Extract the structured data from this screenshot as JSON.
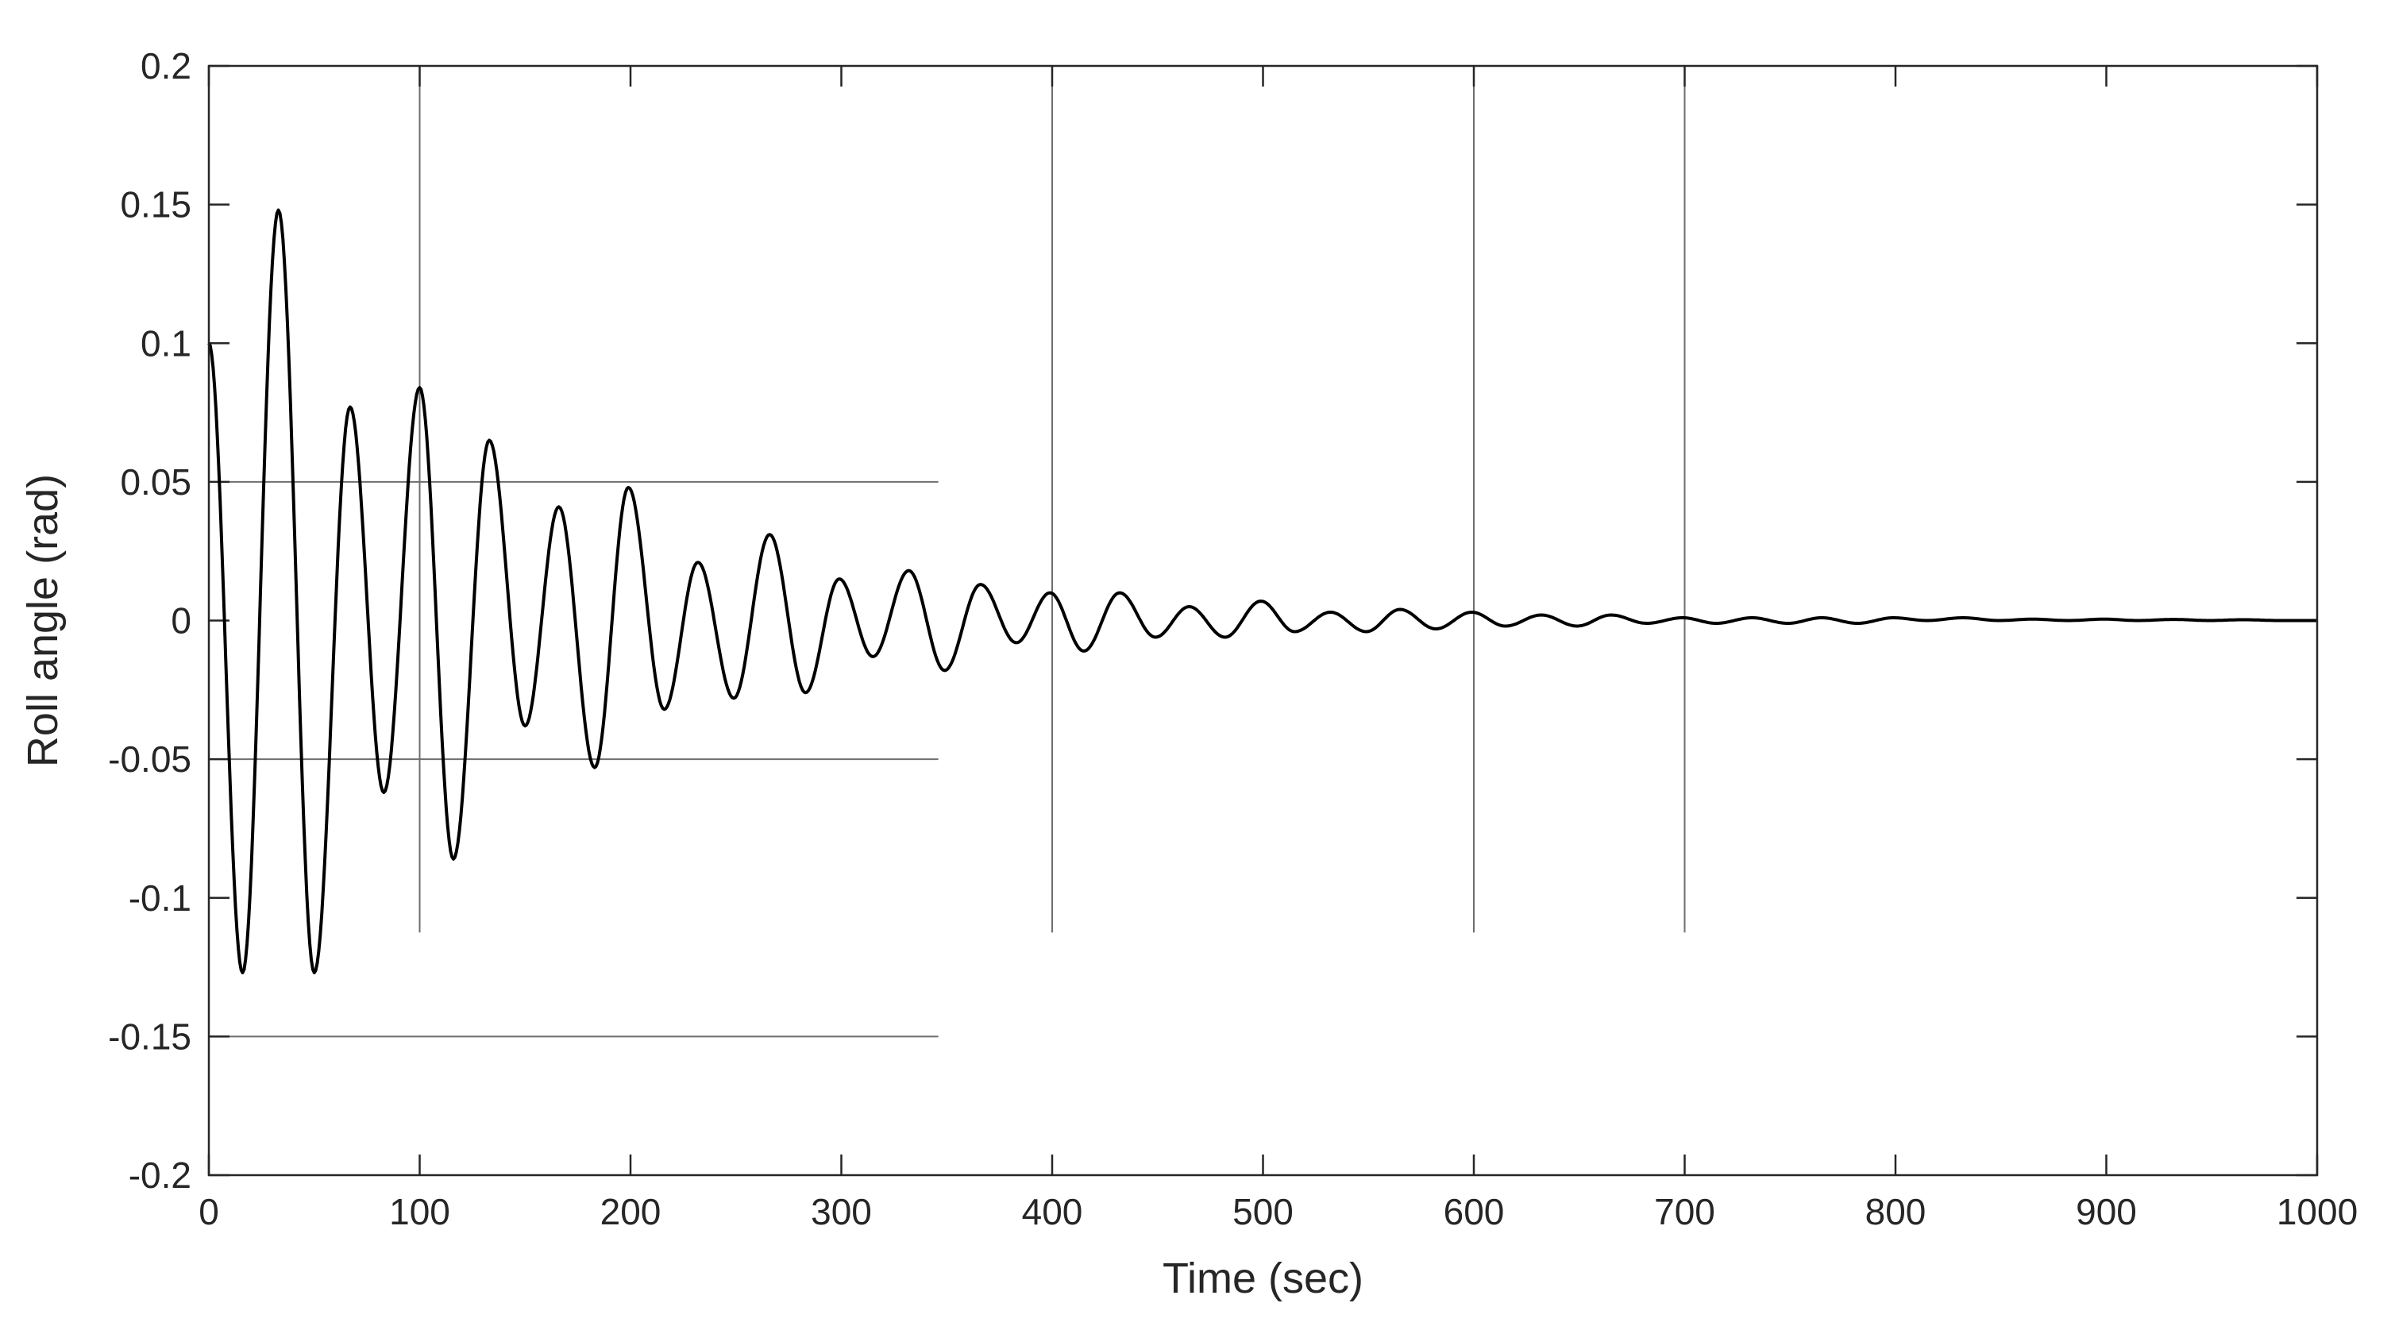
{
  "chart_data": {
    "type": "line",
    "title": "",
    "xlabel": "Time (sec)",
    "ylabel": "Roll angle (rad)",
    "xlim": [
      0,
      1000
    ],
    "ylim": [
      -0.2,
      0.2
    ],
    "xticks": [
      0,
      100,
      200,
      300,
      400,
      500,
      600,
      700,
      800,
      900,
      1000
    ],
    "yticks": [
      0.2,
      0.15,
      0.1,
      0.05,
      0,
      -0.05,
      -0.1,
      -0.15,
      -0.2
    ],
    "xtick_labels": [
      "0",
      "100",
      "200",
      "300",
      "400",
      "500",
      "600",
      "700",
      "800",
      "900",
      "1000"
    ],
    "ytick_labels": [
      "0.2",
      "0.15",
      "0.1",
      "0.05",
      "0",
      "-0.05",
      "-0.1",
      "-0.15",
      "-0.2"
    ],
    "grid": false,
    "legend": "none",
    "line_color": "#000000",
    "series": [
      {
        "x": [
          0,
          16,
          33,
          50,
          67,
          83,
          100,
          116,
          133,
          150,
          166,
          183,
          199,
          216,
          232,
          249,
          266,
          283,
          299,
          315,
          332,
          349,
          366,
          383,
          399,
          415,
          432,
          449,
          465,
          482,
          499,
          515,
          532,
          549,
          565,
          582,
          599,
          615,
          632,
          649,
          665,
          682,
          699,
          715,
          732,
          749,
          765,
          782,
          799,
          815,
          832,
          849,
          865,
          882,
          899,
          915,
          932,
          949,
          965,
          982,
          1000
        ],
        "y": [
          0.1,
          -0.127,
          0.148,
          -0.127,
          0.077,
          -0.062,
          0.084,
          -0.086,
          0.065,
          -0.038,
          0.041,
          -0.053,
          0.048,
          -0.032,
          0.021,
          -0.028,
          0.031,
          -0.026,
          0.015,
          -0.013,
          0.018,
          -0.018,
          0.013,
          -0.008,
          0.01,
          -0.011,
          0.01,
          -0.006,
          0.005,
          -0.006,
          0.007,
          -0.004,
          0.003,
          -0.004,
          0.004,
          -0.003,
          0.003,
          -0.002,
          0.002,
          -0.002,
          0.002,
          -0.001,
          0.001,
          -0.001,
          0.001,
          -0.001,
          0.001,
          -0.001,
          0.001,
          0,
          0.001,
          0,
          0.0005,
          0,
          0.0005,
          0,
          0.0004,
          0,
          0.0003,
          0,
          0
        ]
      }
    ]
  }
}
